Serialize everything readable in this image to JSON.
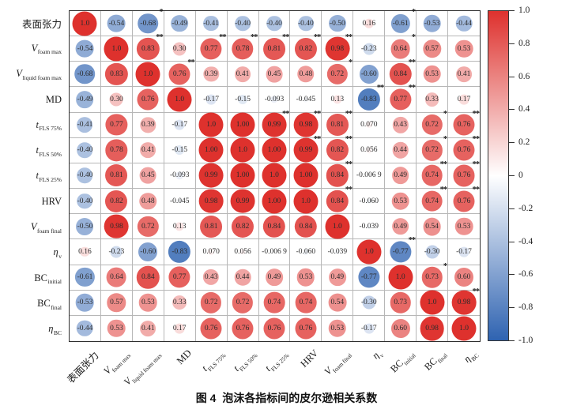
{
  "figure": {
    "caption": "图 4  泡沫各指标间的皮尔逊相关系数"
  },
  "chart_data": {
    "type": "heatmap",
    "subtype": "pearson-correlation-matrix",
    "title": "图 4 泡沫各指标间的皮尔逊相关系数",
    "legend_position": "right",
    "value_range": [
      -1,
      1
    ],
    "colors": {
      "positive": "#de312d",
      "negative": "#2f63b1",
      "mid": "#ffffff"
    },
    "variables": [
      {
        "main": "表面张力",
        "sub": "",
        "italic": false
      },
      {
        "main": "V",
        "sub": "foam max",
        "italic": true
      },
      {
        "main": "V",
        "sub": "liquid foam max",
        "italic": true
      },
      {
        "main": "MD",
        "sub": "",
        "italic": false
      },
      {
        "main": "t",
        "sub": "FLS 75%",
        "italic": true
      },
      {
        "main": "t",
        "sub": "FLS 50%",
        "italic": true
      },
      {
        "main": "t",
        "sub": "FLS 25%",
        "italic": true
      },
      {
        "main": "HRV",
        "sub": "",
        "italic": false
      },
      {
        "main": "V",
        "sub": "foam final",
        "italic": true
      },
      {
        "main": "η",
        "sub": "v",
        "italic": true
      },
      {
        "main": "BC",
        "sub": "initial",
        "italic": false
      },
      {
        "main": "BC",
        "sub": "final",
        "italic": false
      },
      {
        "main": "η",
        "sub": "BC",
        "italic": true
      }
    ],
    "matrix_display": [
      [
        "1.0",
        "-0.54",
        "-0.68",
        "-0.49",
        "-0.41",
        "-0.40",
        "-0.40",
        "-0.40",
        "-0.50",
        "0.16",
        "-0.61",
        "-0.53",
        "-0.44"
      ],
      [
        "-0.54",
        "1.0",
        "0.83",
        "0.30",
        "0.77",
        "0.78",
        "0.81",
        "0.82",
        "0.98",
        "-0.23",
        "0.64",
        "0.57",
        "0.53"
      ],
      [
        "-0.68",
        "0.83",
        "1.0",
        "0.76",
        "0.39",
        "0.41",
        "0.45",
        "0.48",
        "0.72",
        "-0.60",
        "0.84",
        "0.53",
        "0.41"
      ],
      [
        "-0.49",
        "0.30",
        "0.76",
        "1.0",
        "-0.17",
        "-0.15",
        "-0.093",
        "-0.045",
        "0.13",
        "-0.83",
        "0.77",
        "0.33",
        "0.17"
      ],
      [
        "-0.41",
        "0.77",
        "0.39",
        "-0.17",
        "1.0",
        "1.00",
        "0.99",
        "0.98",
        "0.81",
        "0.070",
        "0.43",
        "0.72",
        "0.76"
      ],
      [
        "-0.40",
        "0.78",
        "0.41",
        "-0.15",
        "1.00",
        "1.0",
        "1.00",
        "0.99",
        "0.82",
        "0.056",
        "0.44",
        "0.72",
        "0.76"
      ],
      [
        "-0.40",
        "0.81",
        "0.45",
        "-0.093",
        "0.99",
        "1.00",
        "1.0",
        "1.00",
        "0.84",
        "-0.006 9",
        "0.49",
        "0.74",
        "0.76"
      ],
      [
        "-0.40",
        "0.82",
        "0.48",
        "-0.045",
        "0.98",
        "0.99",
        "1.00",
        "1.0",
        "0.84",
        "-0.060",
        "0.53",
        "0.74",
        "0.76"
      ],
      [
        "-0.50",
        "0.98",
        "0.72",
        "0.13",
        "0.81",
        "0.82",
        "0.84",
        "0.84",
        "1.0",
        "-0.039",
        "0.49",
        "0.54",
        "0.53"
      ],
      [
        "0.16",
        "-0.23",
        "-0.60",
        "-0.83",
        "0.070",
        "0.056",
        "-0.006 9",
        "-0.060",
        "-0.039",
        "1.0",
        "-0.77",
        "-0.30",
        "-0.17"
      ],
      [
        "-0.61",
        "0.64",
        "0.84",
        "0.77",
        "0.43",
        "0.44",
        "0.49",
        "0.53",
        "0.49",
        "-0.77",
        "1.0",
        "0.73",
        "0.60"
      ],
      [
        "-0.53",
        "0.57",
        "0.53",
        "0.33",
        "0.72",
        "0.72",
        "0.74",
        "0.74",
        "0.54",
        "-0.30",
        "0.73",
        "1.0",
        "0.98"
      ],
      [
        "-0.44",
        "0.53",
        "0.41",
        "0.17",
        "0.76",
        "0.76",
        "0.76",
        "0.76",
        "0.53",
        "-0.17",
        "0.60",
        "0.98",
        "1.0"
      ]
    ],
    "significance": [
      [
        "",
        "",
        "*",
        "",
        "",
        "",
        "",
        "",
        "",
        "",
        "*",
        "",
        ""
      ],
      [
        "",
        "",
        "**",
        "",
        "**",
        "**",
        "**",
        "**",
        "**",
        "",
        "*",
        "",
        ""
      ],
      [
        "",
        "",
        "",
        "**",
        "",
        "",
        "",
        "",
        "*",
        "",
        "**",
        "",
        ""
      ],
      [
        "",
        "",
        "",
        "",
        "",
        "",
        "",
        "",
        "",
        "**",
        "**",
        "",
        ""
      ],
      [
        "",
        "",
        "",
        "",
        "",
        "",
        "**",
        "**",
        "**",
        "",
        "",
        "*",
        "**"
      ],
      [
        "",
        "",
        "",
        "",
        "",
        "",
        "",
        "**",
        "**",
        "",
        "",
        "*",
        "**"
      ],
      [
        "",
        "",
        "",
        "",
        "",
        "",
        "",
        "",
        "**",
        "",
        "",
        "**",
        "**"
      ],
      [
        "",
        "",
        "",
        "",
        "",
        "",
        "",
        "",
        "**",
        "",
        "",
        "**",
        "**"
      ],
      [
        "",
        "",
        "",
        "",
        "",
        "",
        "",
        "",
        "",
        "",
        "",
        "",
        ""
      ],
      [
        "",
        "",
        "",
        "",
        "",
        "",
        "",
        "",
        "",
        "",
        "**",
        "",
        ""
      ],
      [
        "",
        "",
        "",
        "",
        "",
        "",
        "",
        "",
        "",
        "",
        "",
        "*",
        ""
      ],
      [
        "",
        "",
        "",
        "",
        "",
        "",
        "",
        "",
        "",
        "",
        "",
        "",
        "**"
      ],
      [
        "",
        "",
        "",
        "",
        "",
        "",
        "",
        "",
        "",
        "",
        "",
        "",
        ""
      ]
    ],
    "colorbar": {
      "ticks": [
        "1.0",
        "0.8",
        "0.6",
        "0.4",
        "0.2",
        "0",
        "-0.2",
        "-0.4",
        "-0.6",
        "-0.8",
        "-1.0"
      ]
    }
  }
}
